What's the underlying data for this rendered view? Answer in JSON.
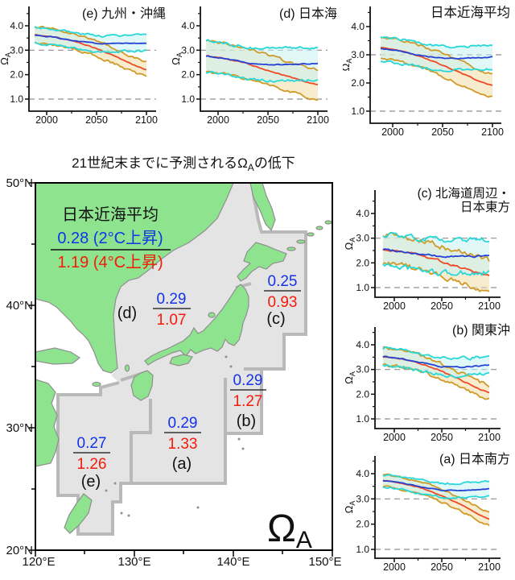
{
  "map": {
    "title_pre": "21世紀末までに予測されるΩ",
    "title_sub": "A",
    "title_post": "の低下",
    "legend": {
      "heading": "日本近海平均",
      "line2c": "0.28 (2°C上昇)",
      "line4c": "1.19 (4°C上昇)"
    },
    "omega_main": "Ω",
    "omega_sub": "A",
    "lat_labels": [
      "50°N",
      "40°N",
      "30°N",
      "20°N"
    ],
    "lon_labels": [
      "120°E",
      "130°E",
      "140°E",
      "150°E"
    ],
    "regions": [
      {
        "id": "a",
        "label": "(a)",
        "rise2c": "0.29",
        "rise4c": "1.33"
      },
      {
        "id": "b",
        "label": "(b)",
        "rise2c": "0.29",
        "rise4c": "1.27"
      },
      {
        "id": "c",
        "label": "(c)",
        "rise2c": "0.25",
        "rise4c": "0.93"
      },
      {
        "id": "d",
        "label": "(d)",
        "rise2c": "0.29",
        "rise4c": "1.07"
      },
      {
        "id": "e",
        "label": "(e)",
        "rise2c": "0.27",
        "rise4c": "1.26"
      }
    ],
    "colors": {
      "land": "#8ee48e",
      "region_fill": "#e4e4e4",
      "region_border": "#b9b9b9",
      "value_2c": "#1433e8",
      "value_4c": "#f51a09"
    }
  },
  "chart_data": [
    {
      "id": "e",
      "type": "line",
      "title_lines": [
        "(e) 九州・沖縄"
      ],
      "ylabel_main": "Ω",
      "ylabel_sub": "A",
      "x_ticks": [
        2000,
        2050,
        2100
      ],
      "x_minor": [
        2025,
        2075
      ],
      "y_ticks": [
        "4.0",
        "3.0",
        "2.0",
        "1.0"
      ],
      "y_minor": [
        4.5,
        3.5,
        2.5,
        1.5
      ],
      "dashed_refs": [
        3.0,
        1.0
      ],
      "x_range": [
        1988,
        2100
      ],
      "ylim": [
        0.5,
        4.8
      ],
      "years": [
        1990,
        2010,
        2030,
        2050,
        2070,
        2090,
        2100
      ],
      "noise": 0.045,
      "series": [
        {
          "name": "mean-4c",
          "scenario": "4C",
          "color": "#ee4a26",
          "values": [
            3.62,
            3.52,
            3.35,
            3.07,
            2.72,
            2.35,
            2.2
          ]
        },
        {
          "name": "band-4c",
          "scenario": "4C",
          "color": "#cf9a28",
          "fill": "#f2dca8",
          "fill_opacity": 0.55,
          "halfwidth": [
            0.33,
            0.3
          ]
        },
        {
          "name": "mean-2c",
          "scenario": "2C",
          "color": "#2542d4",
          "values": [
            3.62,
            3.52,
            3.36,
            3.27,
            3.27,
            3.29,
            3.3
          ]
        },
        {
          "name": "band-2c",
          "scenario": "2C",
          "color": "#28d8d8",
          "fill": "#c6f3f3",
          "fill_opacity": 0.55,
          "halfwidth": [
            0.33,
            0.33
          ]
        }
      ]
    },
    {
      "id": "d",
      "type": "line",
      "title_lines": [
        "(d) 日本海"
      ],
      "ylabel_main": "Ω",
      "ylabel_sub": "A",
      "x_ticks": [
        2000,
        2050,
        2100
      ],
      "x_minor": [
        2025,
        2075
      ],
      "y_ticks": [
        "4.0",
        "3.0",
        "2.0",
        "1.0"
      ],
      "y_minor": [
        4.5,
        3.5,
        2.5,
        1.5
      ],
      "dashed_refs": [
        3.0,
        1.0
      ],
      "x_range": [
        1988,
        2100
      ],
      "ylim": [
        0.5,
        4.8
      ],
      "years": [
        1990,
        2010,
        2030,
        2050,
        2070,
        2090,
        2100
      ],
      "noise": 0.05,
      "series": [
        {
          "name": "mean-4c",
          "scenario": "4C",
          "color": "#ee4a26",
          "values": [
            2.75,
            2.63,
            2.44,
            2.18,
            1.93,
            1.67,
            1.58
          ]
        },
        {
          "name": "band-4c",
          "scenario": "4C",
          "color": "#cf9a28",
          "fill": "#f2dca8",
          "fill_opacity": 0.55,
          "halfwidth": [
            0.64,
            0.6
          ]
        },
        {
          "name": "mean-2c",
          "scenario": "2C",
          "color": "#2542d4",
          "values": [
            2.75,
            2.63,
            2.47,
            2.4,
            2.42,
            2.44,
            2.45
          ]
        },
        {
          "name": "band-2c",
          "scenario": "2C",
          "color": "#28d8d8",
          "fill": "#c6f3f3",
          "fill_opacity": 0.55,
          "halfwidth": [
            0.64,
            0.66
          ]
        }
      ]
    },
    {
      "id": "avg",
      "type": "line",
      "title_lines": [
        "日本近海平均"
      ],
      "ylabel_main": "Ω",
      "ylabel_sub": "A",
      "x_ticks": [
        2000,
        2050,
        2100
      ],
      "x_minor": [
        2025,
        2075
      ],
      "y_ticks": [
        "4.0",
        "3.0",
        "2.0",
        "1.0"
      ],
      "y_minor": [
        4.5,
        3.5,
        2.5,
        1.5
      ],
      "dashed_refs": [
        3.0,
        1.0
      ],
      "x_range": [
        1988,
        2100
      ],
      "ylim": [
        0.5,
        4.6
      ],
      "years": [
        1990,
        2010,
        2030,
        2050,
        2070,
        2090,
        2100
      ],
      "noise": 0.04,
      "series": [
        {
          "name": "mean-4c",
          "scenario": "4C",
          "color": "#ee4a26",
          "values": [
            3.25,
            3.13,
            2.92,
            2.63,
            2.32,
            2.02,
            1.9
          ]
        },
        {
          "name": "band-4c",
          "scenario": "4C",
          "color": "#cf9a28",
          "fill": "#f2dca8",
          "fill_opacity": 0.55,
          "halfwidth": [
            0.4,
            0.4
          ]
        },
        {
          "name": "mean-2c",
          "scenario": "2C",
          "color": "#2542d4",
          "values": [
            3.22,
            3.11,
            2.96,
            2.87,
            2.88,
            2.9,
            2.92
          ]
        },
        {
          "name": "band-2c",
          "scenario": "2C",
          "color": "#28d8d8",
          "fill": "#c6f3f3",
          "fill_opacity": 0.55,
          "halfwidth": [
            0.42,
            0.42
          ]
        }
      ]
    },
    {
      "id": "c",
      "type": "line",
      "title_lines": [
        "(c) 北海道周辺・",
        "日本東方"
      ],
      "ylabel_main": "Ω",
      "ylabel_sub": "A",
      "x_ticks": [
        2000,
        2050,
        2100
      ],
      "x_minor": [
        2025,
        2075
      ],
      "y_ticks": [
        "4.0",
        "3.0",
        "2.0",
        "1.0"
      ],
      "y_minor": [
        4.5,
        3.5,
        2.5,
        1.5
      ],
      "dashed_refs": [
        3.0,
        1.0
      ],
      "x_range": [
        1988,
        2100
      ],
      "ylim": [
        0.5,
        4.6
      ],
      "years": [
        1990,
        2010,
        2030,
        2050,
        2070,
        2090,
        2100
      ],
      "noise": 0.1,
      "series": [
        {
          "name": "mean-4c",
          "scenario": "4C",
          "color": "#ee4a26",
          "values": [
            2.55,
            2.46,
            2.3,
            2.06,
            1.82,
            1.58,
            1.5
          ]
        },
        {
          "name": "band-4c",
          "scenario": "4C",
          "color": "#cf9a28",
          "fill": "#f2dca8",
          "fill_opacity": 0.55,
          "halfwidth": [
            0.6,
            0.6
          ]
        },
        {
          "name": "mean-2c",
          "scenario": "2C",
          "color": "#2542d4",
          "values": [
            2.55,
            2.46,
            2.33,
            2.25,
            2.26,
            2.27,
            2.28
          ]
        },
        {
          "name": "band-2c",
          "scenario": "2C",
          "color": "#28d8d8",
          "fill": "#c6f3f3",
          "fill_opacity": 0.55,
          "halfwidth": [
            0.62,
            0.7
          ]
        }
      ]
    },
    {
      "id": "b",
      "type": "line",
      "title_lines": [
        "(b) 関東沖"
      ],
      "ylabel_main": "Ω",
      "ylabel_sub": "A",
      "x_ticks": [
        2000,
        2050,
        2100
      ],
      "x_minor": [
        2025,
        2075
      ],
      "y_ticks": [
        "4.0",
        "3.0",
        "2.0",
        "1.0"
      ],
      "y_minor": [
        4.5,
        3.5,
        2.5,
        1.5
      ],
      "dashed_refs": [
        3.0,
        1.0
      ],
      "x_range": [
        1988,
        2100
      ],
      "ylim": [
        0.5,
        4.6
      ],
      "years": [
        1990,
        2010,
        2030,
        2050,
        2070,
        2090,
        2100
      ],
      "noise": 0.06,
      "series": [
        {
          "name": "mean-4c",
          "scenario": "4C",
          "color": "#ee4a26",
          "values": [
            3.52,
            3.41,
            3.22,
            2.92,
            2.57,
            2.2,
            2.07
          ]
        },
        {
          "name": "band-4c",
          "scenario": "4C",
          "color": "#cf9a28",
          "fill": "#f2dca8",
          "fill_opacity": 0.55,
          "halfwidth": [
            0.33,
            0.3
          ]
        },
        {
          "name": "mean-2c",
          "scenario": "2C",
          "color": "#2542d4",
          "values": [
            3.52,
            3.43,
            3.26,
            3.11,
            3.1,
            3.14,
            3.18
          ]
        },
        {
          "name": "band-2c",
          "scenario": "2C",
          "color": "#28d8d8",
          "fill": "#c6f3f3",
          "fill_opacity": 0.55,
          "halfwidth": [
            0.33,
            0.35
          ]
        }
      ]
    },
    {
      "id": "a",
      "type": "line",
      "title_lines": [
        "(a) 日本南方"
      ],
      "ylabel_main": "Ω",
      "ylabel_sub": "A",
      "x_ticks": [
        2000,
        2050,
        2100
      ],
      "x_minor": [
        2025,
        2075
      ],
      "y_ticks": [
        "4.0",
        "3.0",
        "2.0",
        "1.0"
      ],
      "y_minor": [
        4.5,
        3.5,
        2.5,
        1.5
      ],
      "dashed_refs": [
        3.0,
        1.0
      ],
      "x_range": [
        1988,
        2100
      ],
      "ylim": [
        0.5,
        4.6
      ],
      "years": [
        1990,
        2010,
        2030,
        2050,
        2070,
        2090,
        2100
      ],
      "noise": 0.035,
      "series": [
        {
          "name": "mean-4c",
          "scenario": "4C",
          "color": "#ee4a26",
          "values": [
            3.72,
            3.6,
            3.42,
            3.13,
            2.77,
            2.37,
            2.2
          ]
        },
        {
          "name": "band-4c",
          "scenario": "4C",
          "color": "#cf9a28",
          "fill": "#f2dca8",
          "fill_opacity": 0.55,
          "halfwidth": [
            0.23,
            0.25
          ]
        },
        {
          "name": "mean-2c",
          "scenario": "2C",
          "color": "#2542d4",
          "values": [
            3.72,
            3.62,
            3.46,
            3.34,
            3.33,
            3.36,
            3.4
          ]
        },
        {
          "name": "band-2c",
          "scenario": "2C",
          "color": "#28d8d8",
          "fill": "#c6f3f3",
          "fill_opacity": 0.55,
          "halfwidth": [
            0.24,
            0.3
          ]
        }
      ]
    }
  ]
}
